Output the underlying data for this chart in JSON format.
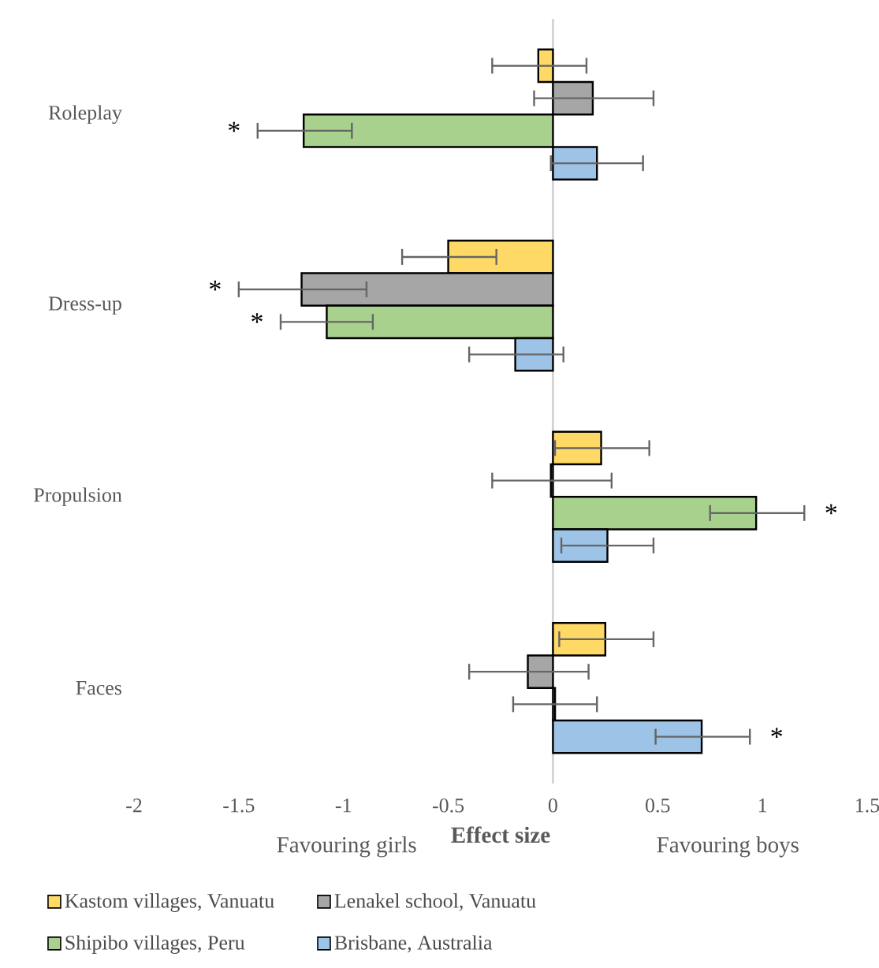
{
  "chart_data": {
    "type": "bar",
    "orientation": "horizontal",
    "categories": [
      "Roleplay",
      "Dress-up",
      "Propulsion",
      "Faces"
    ],
    "xlabel": "Effect size",
    "xlim": [
      -2,
      1.5
    ],
    "xticks": [
      -2,
      -1.5,
      -1,
      -0.5,
      0,
      0.5,
      1,
      1.5
    ],
    "legend": "bottom",
    "series": [
      {
        "name": "Kastom villages, Vanuatu",
        "color": "#ffd966",
        "values": [
          -0.07,
          -0.5,
          0.23,
          0.25
        ],
        "value_labels": [
          null,
          null,
          null,
          null
        ],
        "errors": [
          [
            -0.29,
            0.16
          ],
          [
            -0.72,
            -0.27
          ],
          [
            0.01,
            0.46
          ],
          [
            0.03,
            0.48
          ]
        ]
      },
      {
        "name": "Lenakel school, Vanuatu",
        "color": "#a6a6a6",
        "values": [
          0.19,
          -1.2,
          -0.01,
          -0.12
        ],
        "value_labels": [
          null,
          "*",
          null,
          null
        ],
        "errors": [
          [
            -0.09,
            0.48
          ],
          [
            -1.5,
            -0.89
          ],
          [
            -0.29,
            0.28
          ],
          [
            -0.4,
            0.17
          ]
        ]
      },
      {
        "name": "Shipibo villages, Peru",
        "color": "#a9d18e",
        "values": [
          -1.19,
          -1.08,
          0.97,
          0.01
        ],
        "value_labels": [
          "*",
          "*",
          "*",
          null
        ],
        "errors": [
          [
            -1.41,
            -0.96
          ],
          [
            -1.3,
            -0.86
          ],
          [
            0.75,
            1.2
          ],
          [
            -0.19,
            0.21
          ]
        ]
      },
      {
        "name": "Brisbane, Australia",
        "color": "#9dc3e6",
        "values": [
          0.21,
          -0.18,
          0.26,
          0.71
        ],
        "value_labels": [
          null,
          null,
          null,
          "*"
        ],
        "errors": [
          [
            -0.01,
            0.43
          ],
          [
            -0.4,
            0.05
          ],
          [
            0.04,
            0.48
          ],
          [
            0.49,
            0.94
          ]
        ]
      }
    ],
    "annotations": [
      "Favouring girls",
      "Favouring boys"
    ]
  }
}
